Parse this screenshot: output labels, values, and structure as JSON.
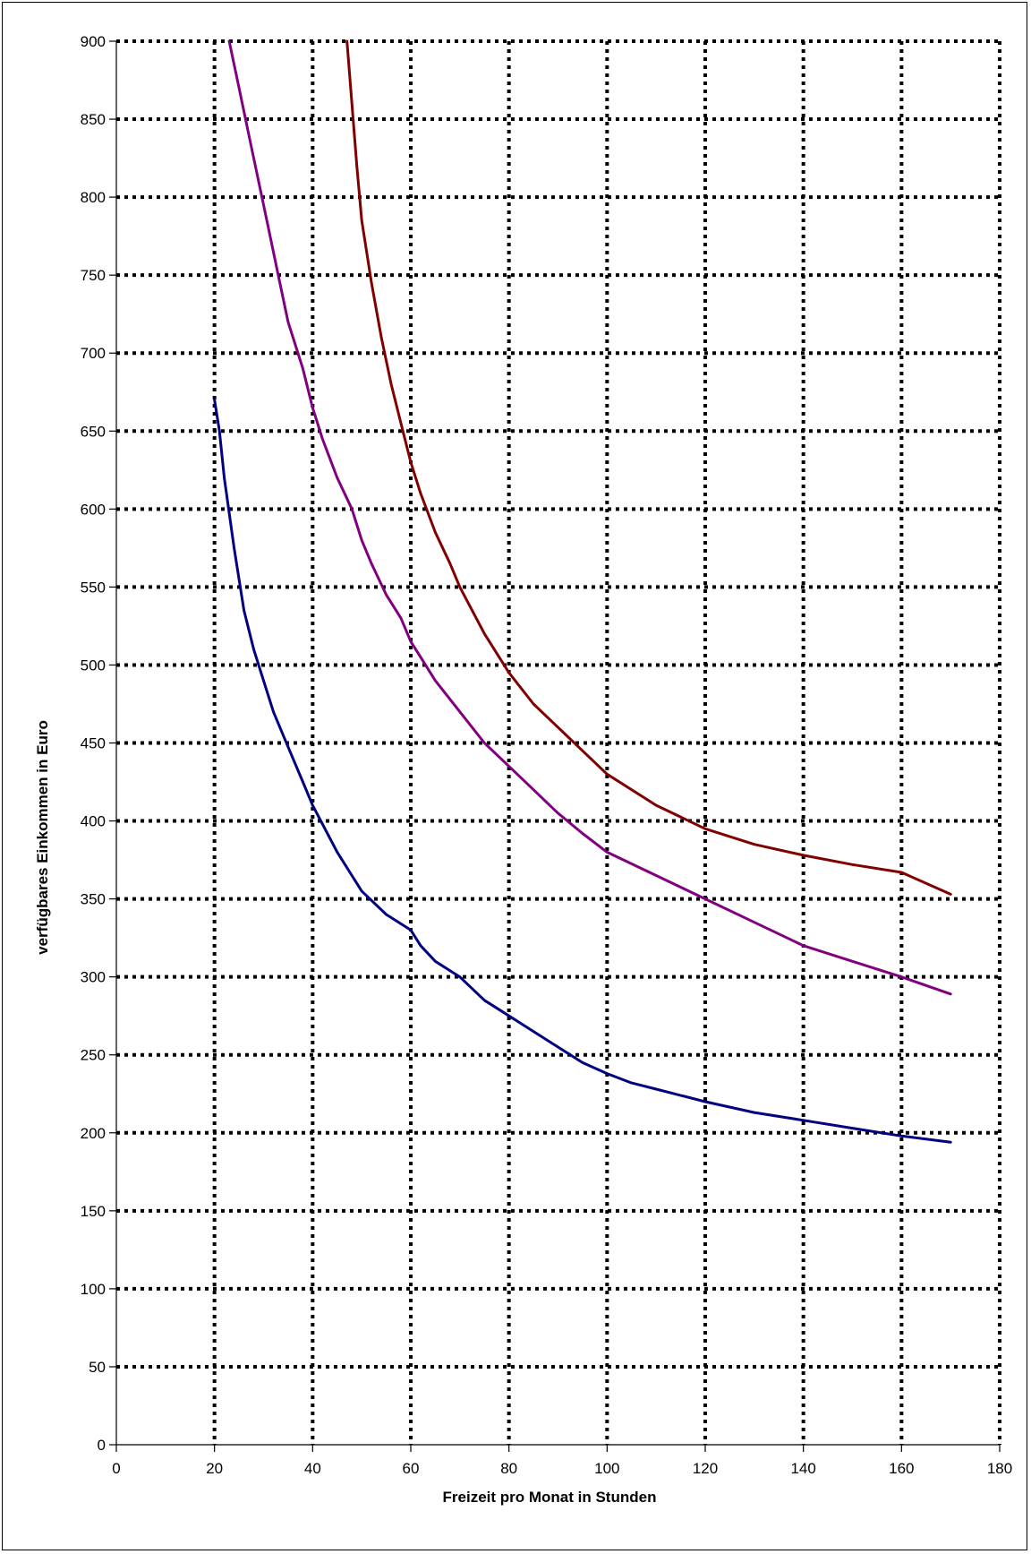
{
  "chart_data": {
    "type": "line",
    "title": "",
    "xlabel": "Freizeit pro Monat in Stunden",
    "ylabel": "verfügbares Einkommen in Euro",
    "xlim": [
      0,
      180
    ],
    "ylim": [
      0,
      900
    ],
    "xticks": [
      0,
      20,
      40,
      60,
      80,
      100,
      120,
      140,
      160,
      180
    ],
    "yticks": [
      0,
      50,
      100,
      150,
      200,
      250,
      300,
      350,
      400,
      450,
      500,
      550,
      600,
      650,
      700,
      750,
      800,
      850,
      900
    ],
    "grid": true,
    "grid_style": "dotted",
    "legend": "none",
    "series": [
      {
        "color": "#000080",
        "x": [
          20,
          21,
          22,
          24,
          26,
          28,
          30,
          32,
          34,
          36,
          38,
          40,
          42,
          45,
          48,
          50,
          55,
          60,
          62,
          65,
          70,
          75,
          80,
          85,
          90,
          95,
          100,
          105,
          110,
          120,
          130,
          140,
          150,
          160,
          170
        ],
        "y": [
          670,
          650,
          620,
          575,
          535,
          510,
          490,
          470,
          455,
          440,
          425,
          410,
          398,
          380,
          365,
          355,
          340,
          330,
          320,
          310,
          300,
          285,
          275,
          265,
          255,
          245,
          238,
          232,
          228,
          220,
          213,
          208,
          203,
          198,
          194
        ]
      },
      {
        "color": "#800080",
        "x": [
          23,
          25,
          27,
          29,
          31,
          33,
          35,
          38,
          40,
          42,
          45,
          48,
          50,
          52,
          55,
          58,
          60,
          62,
          65,
          70,
          75,
          80,
          85,
          90,
          95,
          100,
          110,
          120,
          130,
          140,
          150,
          160,
          170
        ],
        "y": [
          900,
          870,
          840,
          810,
          780,
          750,
          720,
          690,
          665,
          645,
          620,
          600,
          580,
          565,
          545,
          530,
          515,
          505,
          490,
          470,
          450,
          435,
          420,
          405,
          392,
          380,
          365,
          350,
          335,
          320,
          310,
          300,
          289
        ]
      },
      {
        "color": "#800000",
        "x": [
          47,
          48,
          49,
          50,
          52,
          54,
          56,
          58,
          60,
          62,
          65,
          68,
          70,
          75,
          80,
          85,
          90,
          100,
          110,
          120,
          130,
          140,
          150,
          160,
          170
        ],
        "y": [
          900,
          860,
          820,
          785,
          745,
          710,
          680,
          655,
          630,
          610,
          585,
          565,
          550,
          520,
          495,
          475,
          460,
          430,
          410,
          395,
          385,
          378,
          372,
          367,
          353
        ]
      }
    ]
  }
}
